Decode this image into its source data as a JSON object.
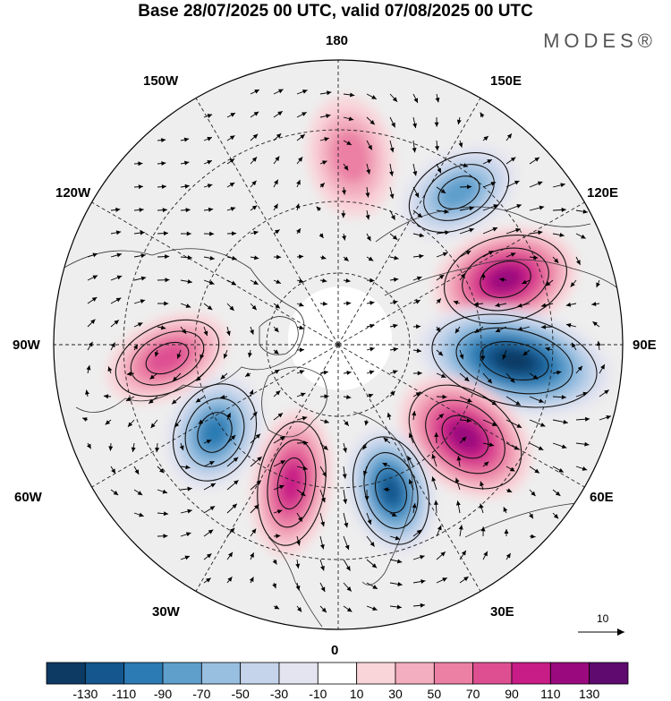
{
  "title": "Base 28/07/2025 00 UTC, valid 07/08/2025 00 UTC",
  "brand": "MODES®",
  "longitude_labels": {
    "top": "180",
    "bottom": "0",
    "left": "90W",
    "right": "90E",
    "upper_left_1": "150W",
    "upper_left_2": "120W",
    "upper_right_1": "150E",
    "upper_right_2": "120E",
    "lower_left_1": "60W",
    "lower_left_2": "30W",
    "lower_right_1": "60E",
    "lower_right_2": "30E"
  },
  "reference_vector": "10",
  "colorbar": {
    "labels": [
      "-130",
      "-110",
      "-90",
      "-70",
      "-50",
      "-30",
      "-10",
      "10",
      "30",
      "50",
      "70",
      "90",
      "110",
      "130"
    ],
    "colors": [
      "#0d3a63",
      "#14568d",
      "#2c7bb4",
      "#5f9fcc",
      "#98bfe0",
      "#c5d4ea",
      "#e4e4f0",
      "#ffffff",
      "#f9d4d9",
      "#f3aebf",
      "#eb7fa4",
      "#de4f92",
      "#c81c86",
      "#9a0a7e",
      "#5e0a6e"
    ]
  },
  "anomaly_centers": [
    {
      "name": "high-east-siberia",
      "sign": "positive",
      "peak": 110
    },
    {
      "name": "low-central-asia",
      "sign": "negative",
      "peak": -130
    },
    {
      "name": "high-urals",
      "sign": "positive",
      "peak": 110
    },
    {
      "name": "low-scandinavia",
      "sign": "negative",
      "peak": -110
    },
    {
      "name": "high-greenland-atlantic",
      "sign": "positive",
      "peak": 90
    },
    {
      "name": "low-labrador",
      "sign": "negative",
      "peak": -90
    },
    {
      "name": "high-canada",
      "sign": "positive",
      "peak": 70
    },
    {
      "name": "low-okhotsk",
      "sign": "negative",
      "peak": -70
    },
    {
      "name": "high-bering",
      "sign": "positive",
      "peak": 50
    }
  ]
}
